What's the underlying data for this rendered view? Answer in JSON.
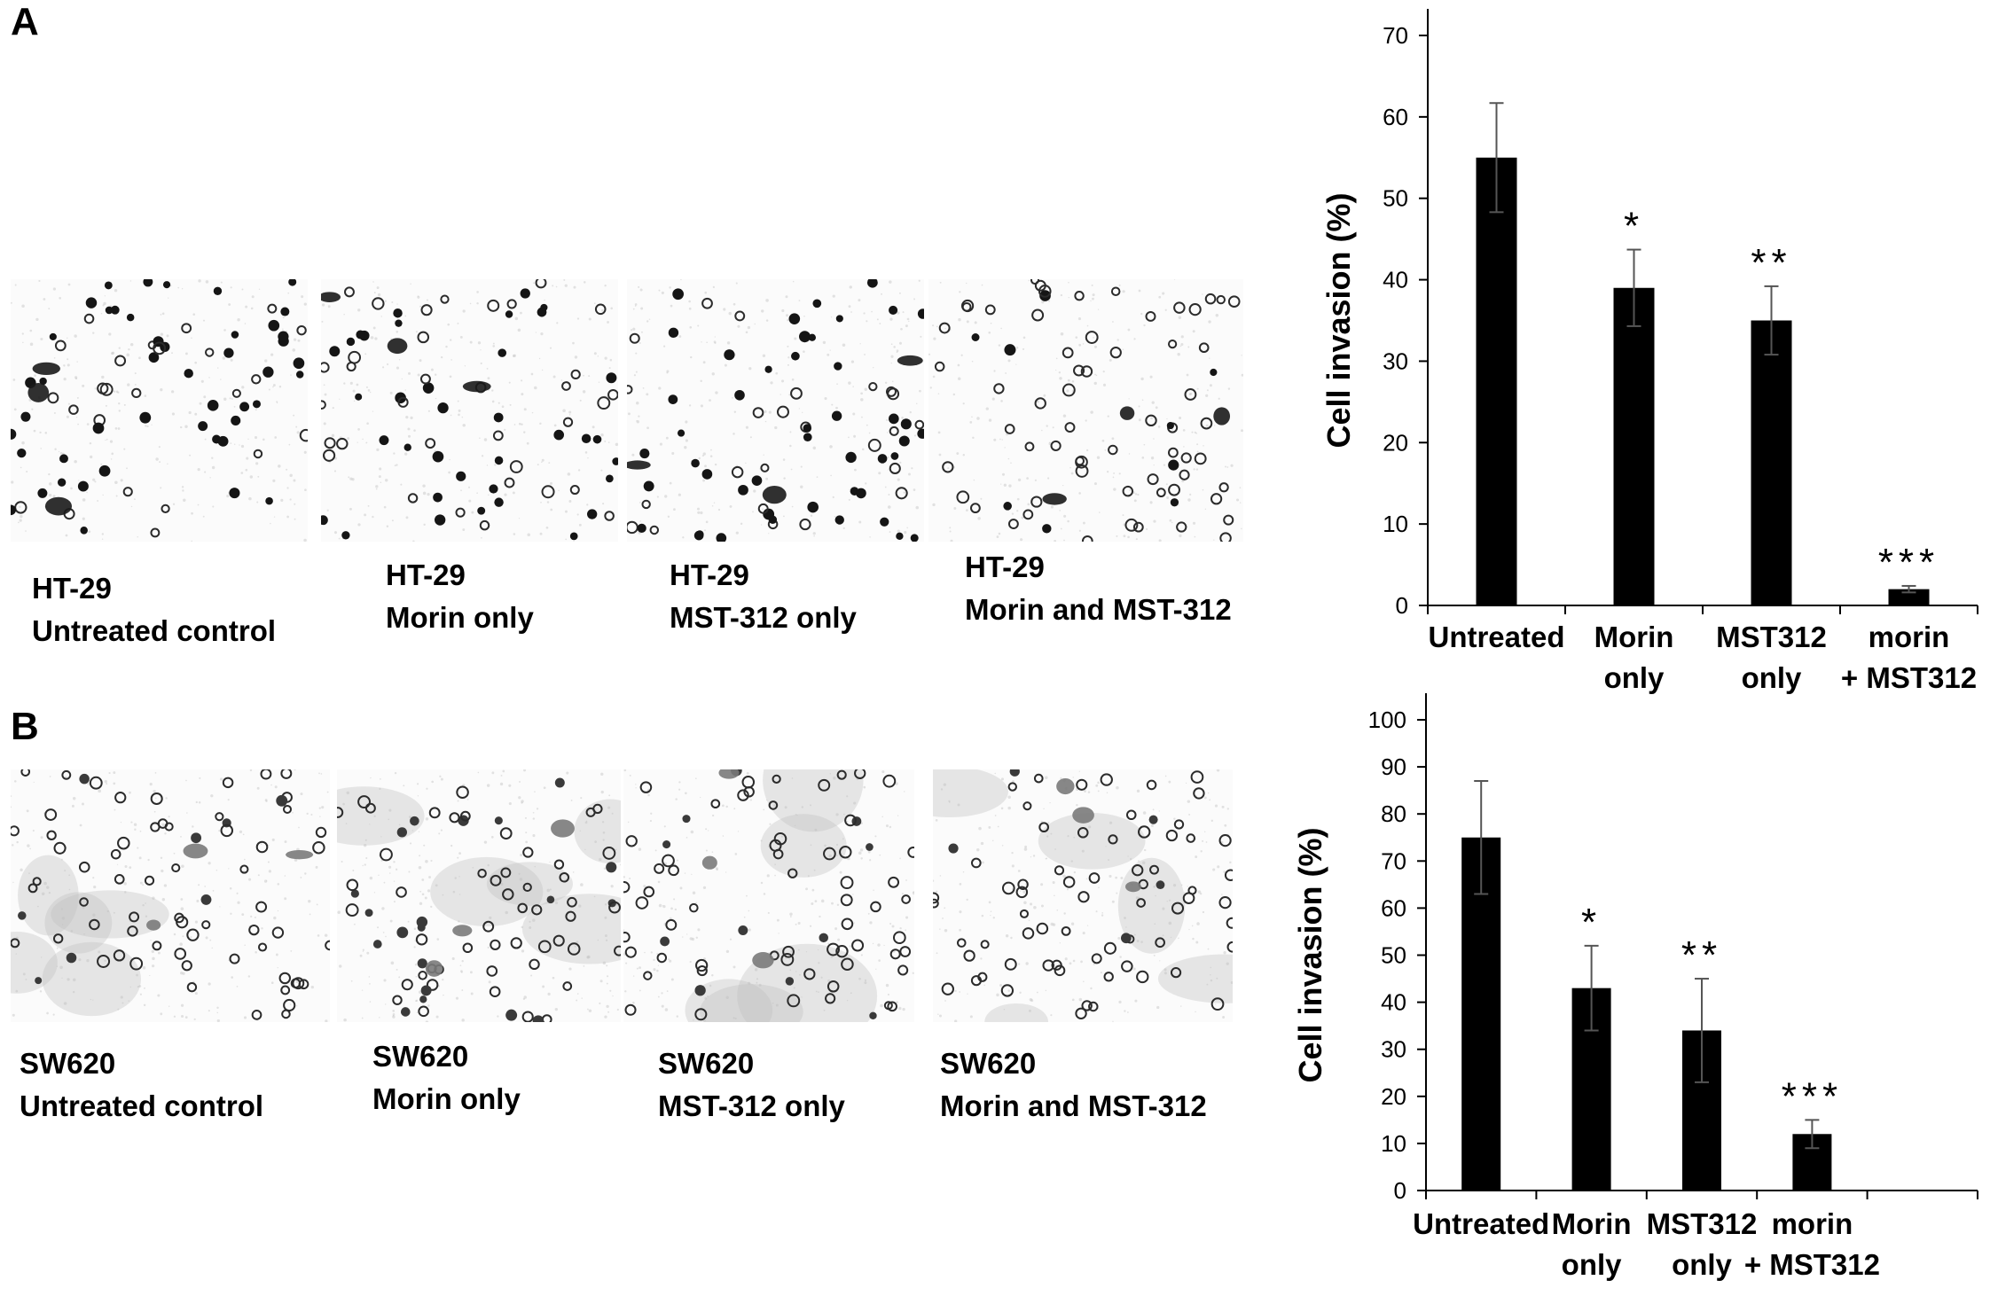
{
  "panels": [
    {
      "letter": "A",
      "images": [
        {
          "line1": "HT-29",
          "line2": "Untreated control"
        },
        {
          "line1": "HT-29",
          "line2": "Morin only"
        },
        {
          "line1": "HT-29",
          "line2": "MST-312 only"
        },
        {
          "line1": "HT-29",
          "line2": "Morin and MST-312"
        }
      ]
    },
    {
      "letter": "B",
      "images": [
        {
          "line1": "SW620",
          "line2": "Untreated control"
        },
        {
          "line1": "SW620",
          "line2": "Morin only"
        },
        {
          "line1": "SW620",
          "line2": "MST-312 only"
        },
        {
          "line1": "SW620",
          "line2": "Morin and MST-312"
        }
      ]
    }
  ],
  "chart_data": [
    {
      "type": "bar",
      "title": "",
      "categories": [
        [
          "Untreated"
        ],
        [
          "Morin",
          "only"
        ],
        [
          "MST312",
          "only"
        ],
        [
          "morin",
          "+ MST312"
        ]
      ],
      "values": [
        55,
        39,
        35,
        2
      ],
      "errors": [
        6.7,
        4.7,
        4.2,
        0.4
      ],
      "significance": [
        "",
        "*",
        "**",
        "***"
      ],
      "ylabel": "Cell invasion (%)",
      "ylim": [
        0,
        70
      ],
      "yticks": [
        0,
        10,
        20,
        30,
        40,
        50,
        60,
        70
      ],
      "bar_color": "#000000",
      "grid": false
    },
    {
      "type": "bar",
      "title": "",
      "categories": [
        [
          "Untreated"
        ],
        [
          "Morin",
          "only"
        ],
        [
          "MST312",
          "only"
        ],
        [
          "morin",
          "+ MST312"
        ]
      ],
      "values": [
        75,
        43,
        34,
        12
      ],
      "errors": [
        12,
        9,
        11,
        3
      ],
      "significance": [
        "",
        "*",
        "**",
        "***"
      ],
      "ylabel": "Cell invasion (%)",
      "ylim": [
        0,
        100
      ],
      "yticks": [
        0,
        10,
        20,
        30,
        40,
        50,
        60,
        70,
        80,
        90,
        100
      ],
      "bar_color": "#000000",
      "grid": false
    }
  ]
}
